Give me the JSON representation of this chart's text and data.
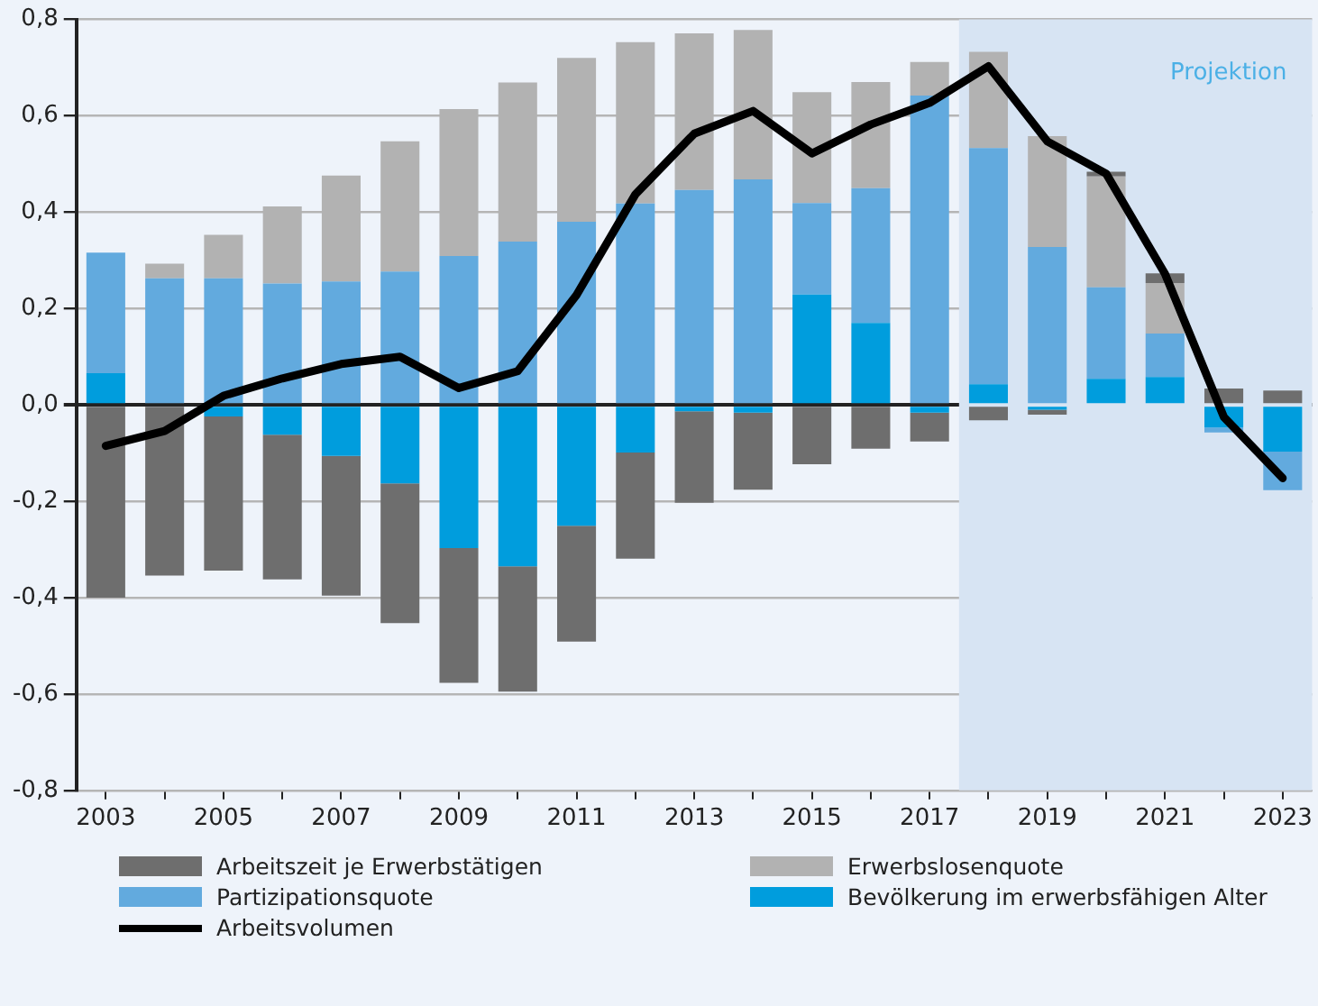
{
  "chart_data": {
    "type": "bar",
    "stacked": true,
    "x": [
      2003,
      2004,
      2005,
      2006,
      2007,
      2008,
      2009,
      2010,
      2011,
      2012,
      2013,
      2014,
      2015,
      2016,
      2017,
      2018,
      2019,
      2020,
      2021,
      2022,
      2023
    ],
    "xlim": [
      2002.5,
      2023.5
    ],
    "xticks": [
      2003,
      {
        "value": 2004,
        "label": null
      },
      2005,
      {
        "value": 2006,
        "label": null
      },
      2007,
      {
        "value": 2008,
        "label": null
      },
      2009,
      {
        "value": 2010,
        "label": null
      },
      2011,
      {
        "value": 2012,
        "label": null
      },
      2013,
      {
        "value": 2014,
        "label": null
      },
      2015,
      {
        "value": 2016,
        "label": null
      },
      2017,
      {
        "value": 2018,
        "label": null
      },
      2019,
      {
        "value": 2020,
        "label": null
      },
      2021,
      {
        "value": 2022,
        "label": null
      },
      2023
    ],
    "ylim": [
      -0.8,
      0.8
    ],
    "yticks": [
      {
        "value": -0.8,
        "label": "-0,8"
      },
      {
        "value": -0.6,
        "label": "-0,6"
      },
      {
        "value": -0.4,
        "label": "-0,4"
      },
      {
        "value": -0.2,
        "label": "-0,2"
      },
      {
        "value": 0,
        "label": "0,0"
      },
      {
        "value": 0.2,
        "label": "0,2"
      },
      {
        "value": 0.4,
        "label": "0,4"
      },
      {
        "value": 0.6,
        "label": "0,6"
      },
      {
        "value": 0.8,
        "label": "0,8"
      }
    ],
    "grid": "y",
    "legend": "bottom",
    "bands": [
      {
        "axis": "x",
        "from": 2017.5,
        "to": 2023.5,
        "label": "Projektion",
        "color": "#d7e4f3"
      }
    ],
    "series": [
      {
        "name": "Bevölkerung im erwerbsfähigen Alter",
        "color": "#009ddd",
        "values": [
          0.066,
          0,
          -0.024,
          -0.062,
          -0.106,
          -0.163,
          -0.297,
          -0.335,
          -0.251,
          -0.099,
          -0.013,
          -0.016,
          0.229,
          0.17,
          -0.016,
          0.043,
          -0.01,
          0.054,
          0.058,
          -0.047,
          -0.097
        ]
      },
      {
        "name": "Partizipationsquote",
        "color": "#62aade",
        "values": [
          0.25,
          0.263,
          0.263,
          0.252,
          0.256,
          0.277,
          0.309,
          0.339,
          0.38,
          0.418,
          0.446,
          0.468,
          0.19,
          0.28,
          0.642,
          0.49,
          0.328,
          0.19,
          0.09,
          -0.01,
          -0.08
        ]
      },
      {
        "name": "Erwerbslosenquote",
        "color": "#b2b2b2",
        "values": [
          null,
          0.03,
          0.09,
          0.16,
          0.22,
          0.27,
          0.305,
          0.33,
          0.34,
          0.335,
          0.325,
          0.31,
          0.23,
          0.22,
          0.07,
          0.2,
          0.23,
          0.23,
          0.105,
          0,
          0
        ]
      },
      {
        "name": "Arbeitszeit je Erwerbstätigen",
        "color": "#6e6e6e",
        "values": [
          -0.4,
          -0.354,
          -0.32,
          -0.3,
          -0.29,
          -0.29,
          -0.28,
          -0.26,
          -0.24,
          -0.22,
          -0.19,
          -0.16,
          -0.123,
          -0.091,
          -0.06,
          -0.032,
          -0.01,
          0.01,
          0.02,
          0.034,
          0.03
        ]
      },
      {
        "name": "Arbeitsvolumen",
        "type": "line",
        "color": "#000000",
        "values": [
          -0.085,
          -0.054,
          0.019,
          0.055,
          0.085,
          0.1,
          0.035,
          0.07,
          0.228,
          0.437,
          0.563,
          0.61,
          0.522,
          0.582,
          0.627,
          0.703,
          0.547,
          0.48,
          0.272,
          -0.025,
          -0.152
        ]
      }
    ]
  }
}
